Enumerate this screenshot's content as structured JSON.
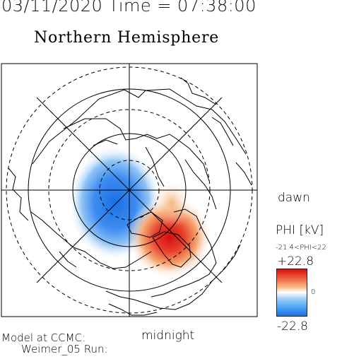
{
  "header": {
    "timestamp": "03/11/2020 Time = 07:38:00",
    "hemisphere": "Northern Hemisphere"
  },
  "map": {
    "projection": "polar",
    "coastline_color": "#000000",
    "grid_color": "#000000",
    "dawn_label": "dawn",
    "midnight_label": "midnight",
    "potential_cells": [
      {
        "name": "negative",
        "color": "#1a6fe8"
      },
      {
        "name": "positive",
        "color": "#d40f0f"
      }
    ]
  },
  "colorbar": {
    "title": "PHI [kV]",
    "range_text": "-21.4<PHI<22",
    "max_label": "+22.8",
    "zero_label": "0",
    "min_label": "-22.8",
    "max_color": "#d40f0f",
    "zero_color": "#ffffff",
    "min_color": "#1a6fe8"
  },
  "footer": {
    "model_label": "Model at CCMC:",
    "run_label": "Weimer_05 Run:"
  }
}
